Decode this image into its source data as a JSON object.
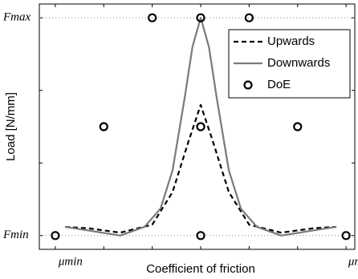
{
  "chart_data": {
    "type": "line",
    "x_label": "Coefficient of friction",
    "y_label": "Load [N/mm]",
    "xlim": [
      -0.33,
      6.18
    ],
    "ylim": [
      -0.19,
      3.19
    ],
    "xticks": [
      {
        "value": 0,
        "label": "μmin"
      },
      {
        "value": 1,
        "label": null
      },
      {
        "value": 2,
        "label": null
      },
      {
        "value": 3,
        "label": null
      },
      {
        "value": 4,
        "label": null
      },
      {
        "value": 5,
        "label": null
      },
      {
        "value": 6,
        "label": "μmax"
      }
    ],
    "yticks": [
      {
        "value": 0,
        "label": "Fmin"
      },
      {
        "value": 1,
        "label": null
      },
      {
        "value": 2,
        "label": null
      },
      {
        "value": 3,
        "label": "Fmax"
      }
    ],
    "grid": true,
    "legend": "upper right",
    "series": [
      {
        "name": "Upwards",
        "color": "#000000",
        "dash": true,
        "x": [
          0.2,
          0.68,
          1.34,
          2.0,
          2.42,
          2.75,
          3.0,
          3.25,
          3.58,
          4.0,
          4.66,
          5.32,
          5.8
        ],
        "values": [
          0.12,
          0.1,
          0.04,
          0.15,
          0.6,
          1.3,
          1.8,
          1.3,
          0.6,
          0.15,
          0.04,
          0.1,
          0.12
        ]
      },
      {
        "name": "Downwards",
        "color": "#7a7a7a",
        "dash": false,
        "x": [
          0.2,
          0.68,
          1.34,
          1.84,
          2.17,
          2.42,
          2.67,
          2.83,
          3.0,
          3.17,
          3.33,
          3.58,
          3.83,
          4.16,
          4.66,
          5.32,
          5.8
        ],
        "values": [
          0.12,
          0.07,
          0.0,
          0.12,
          0.37,
          0.9,
          1.9,
          2.6,
          3.0,
          2.6,
          1.9,
          0.9,
          0.37,
          0.12,
          0.0,
          0.07,
          0.12
        ]
      },
      {
        "name": "DoE",
        "color": "#000000",
        "marker": "circle",
        "x": [
          0,
          1,
          2,
          3,
          4,
          5,
          6,
          3,
          3
        ],
        "values": [
          0,
          1.5,
          3,
          3,
          3,
          1.5,
          0,
          1.5,
          0
        ]
      }
    ]
  }
}
